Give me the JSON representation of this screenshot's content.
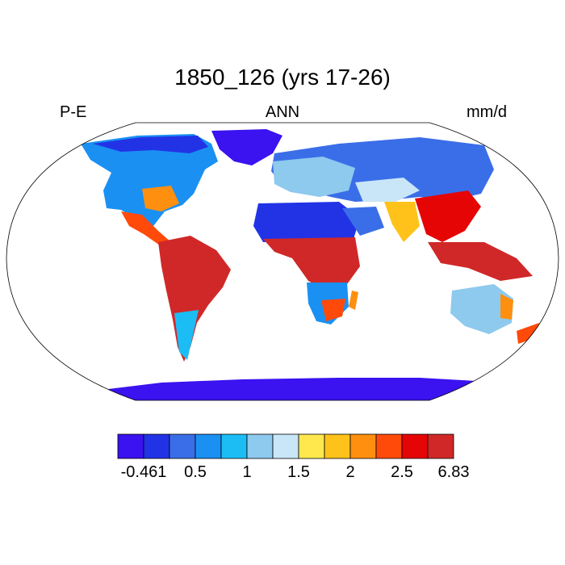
{
  "title": "1850_126 (yrs 17-26)",
  "left_label": "P-E",
  "center_label": "ANN",
  "right_label": "mm/d",
  "colorbar": {
    "colors": [
      "#3b12f0",
      "#2233e6",
      "#3a6ee8",
      "#1a90f2",
      "#1cbdf5",
      "#8ec9ee",
      "#c8e6f7",
      "#ffe84d",
      "#ffc21a",
      "#ff8f0f",
      "#ff4a0a",
      "#e60505",
      "#d02828"
    ],
    "labels": [
      "-0.461",
      "0.5",
      "1",
      "1.5",
      "2",
      "2.5",
      "6.83"
    ]
  }
}
